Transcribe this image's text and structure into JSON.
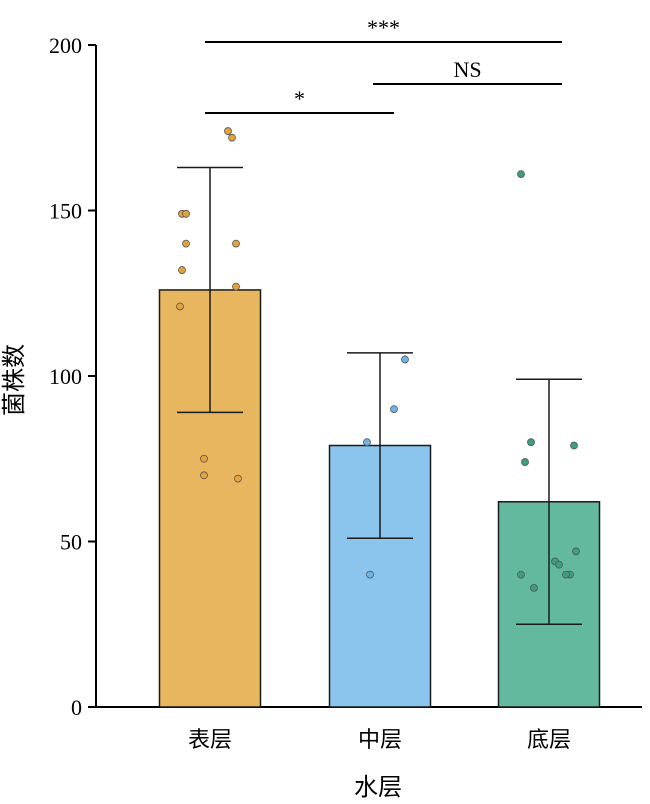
{
  "chart_data": {
    "type": "bar",
    "xlabel": "水层",
    "ylabel": "菌株数",
    "ylim": [
      0,
      200
    ],
    "yticks": [
      0,
      50,
      100,
      150,
      200
    ],
    "categories": [
      "表层",
      "中层",
      "底层"
    ],
    "values": [
      126,
      79,
      62
    ],
    "error_low": [
      89,
      51,
      25
    ],
    "error_high": [
      163,
      107,
      99
    ],
    "colors": [
      "#e8b65e",
      "#8bc5ee",
      "#63b9a0"
    ],
    "point_colors": [
      "#e3a23b",
      "#6eb3e6",
      "#3c9e7c"
    ],
    "points": [
      [
        174,
        172,
        149,
        149,
        140,
        140,
        132,
        127,
        121,
        75,
        70,
        69
      ],
      [
        105,
        90,
        80,
        40
      ],
      [
        161,
        80,
        79,
        74,
        47,
        44,
        43,
        40,
        40,
        40,
        36
      ]
    ],
    "significance": [
      {
        "from": 0,
        "to": 2,
        "label": "***"
      },
      {
        "from": 1,
        "to": 2,
        "label": "NS"
      },
      {
        "from": 0,
        "to": 1,
        "label": "*"
      }
    ]
  }
}
